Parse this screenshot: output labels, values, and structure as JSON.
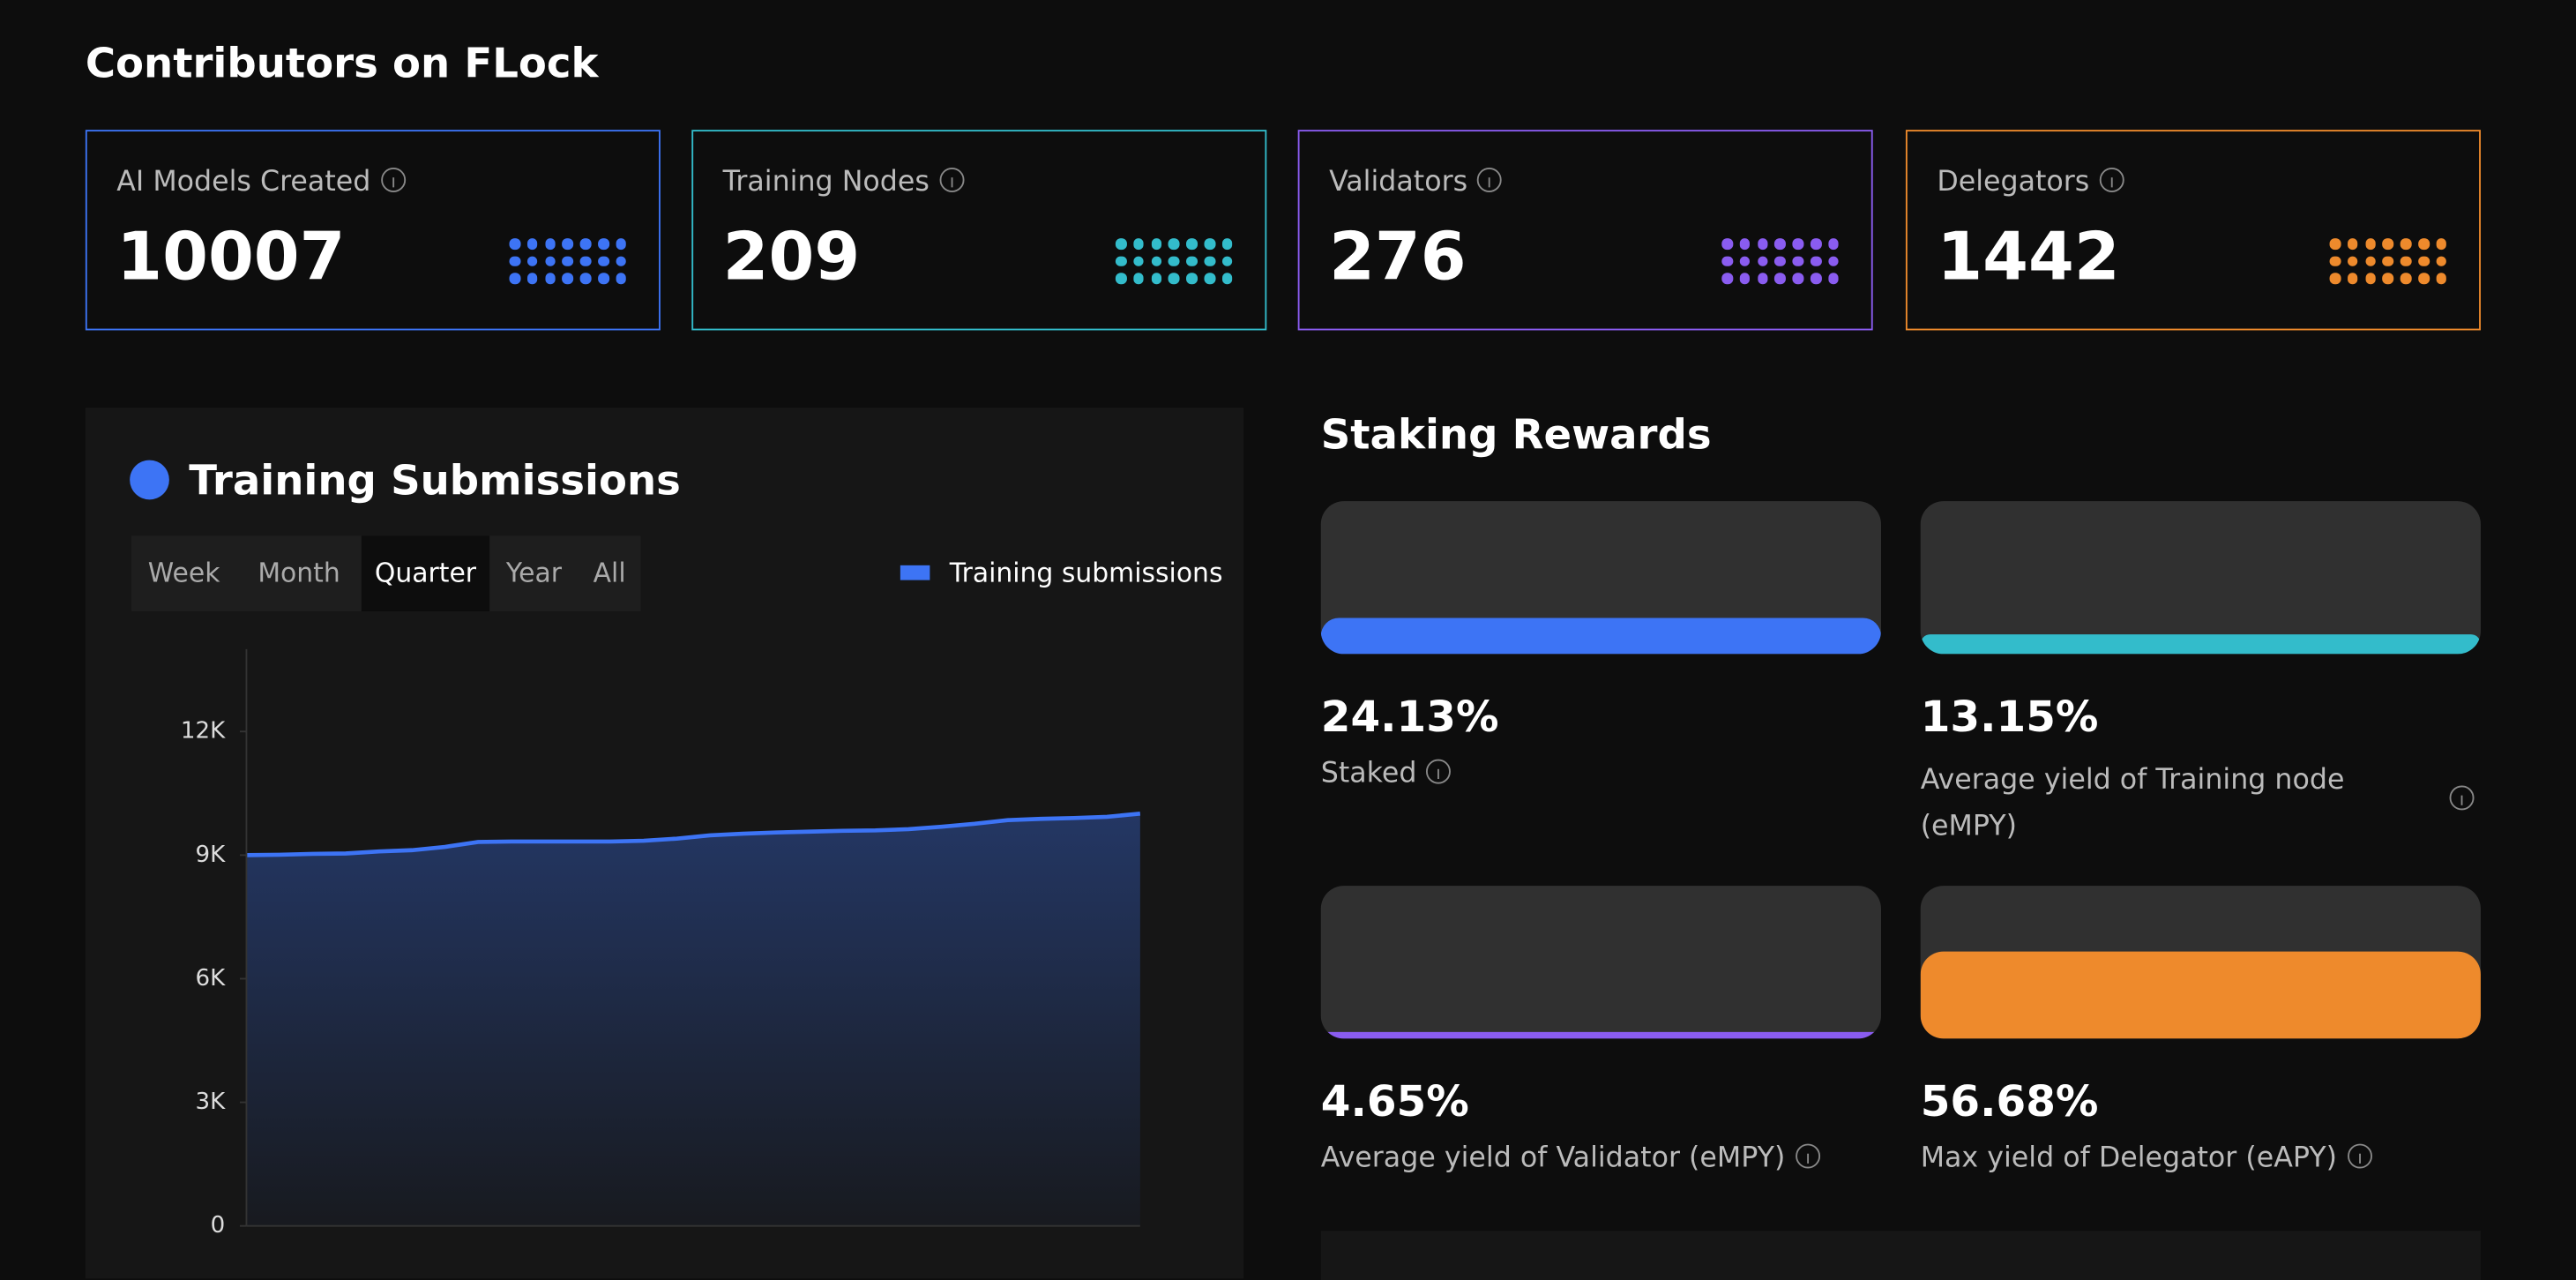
{
  "header": {
    "title": "Contributors on FLock"
  },
  "stats": [
    {
      "label": "AI Models Created",
      "value": 10007,
      "color": "#3d74f5"
    },
    {
      "label": "Training Nodes",
      "value": 209,
      "color": "#33bccb"
    },
    {
      "label": "Validators",
      "value": 276,
      "color": "#8a5cf0"
    },
    {
      "label": "Delegators",
      "value": 1442,
      "color": "#ee8a2c"
    }
  ],
  "chart_data": [
    {
      "type": "area",
      "title": "Training Submissions",
      "ranges": [
        "Week",
        "Month",
        "Quarter",
        "Year",
        "All"
      ],
      "selected_range": 2,
      "categories": [
        null,
        null,
        null,
        null,
        null,
        null,
        null,
        null,
        null,
        null,
        null,
        null,
        null,
        null,
        null,
        null,
        null,
        null,
        null,
        null,
        null,
        null,
        null,
        null,
        null,
        null,
        null,
        null
      ],
      "series": [
        {
          "name": "Training submissions",
          "color": "#3d74f5",
          "values": [
            9000,
            9010,
            9030,
            9040,
            9090,
            9120,
            9200,
            9320,
            9330,
            9330,
            9330,
            9330,
            9350,
            9400,
            9480,
            9520,
            9550,
            9570,
            9590,
            9600,
            9630,
            9690,
            9760,
            9850,
            9880,
            9900,
            9930,
            10007
          ]
        }
      ],
      "ylim": [
        0,
        14000
      ],
      "yticks": [
        0,
        {
          "value": 3000,
          "label": "3K"
        },
        {
          "value": 6000,
          "label": "6K"
        },
        {
          "value": 9000,
          "label": "9K"
        },
        {
          "value": 12000,
          "label": "12K"
        }
      ]
    },
    {
      "type": "gauge",
      "title": "Staking Rewards",
      "ylim": [
        0,
        100
      ],
      "items": [
        {
          "label": "Staked",
          "value": 24.13,
          "value_label": "24.13%",
          "color": "#3d74f5"
        },
        {
          "label": "Average yield of Training node (eMPY)",
          "value": 13.15,
          "value_label": "13.15%",
          "color": "#33bccb"
        },
        {
          "label": "Average yield of Validator (eMPY)",
          "value": 4.65,
          "value_label": "4.65%",
          "color": "#8a5cf0"
        },
        {
          "label": "Max yield of Delegator (eAPY)",
          "value": 56.68,
          "value_label": "56.68%",
          "color": "#ee8a2c"
        }
      ]
    }
  ]
}
